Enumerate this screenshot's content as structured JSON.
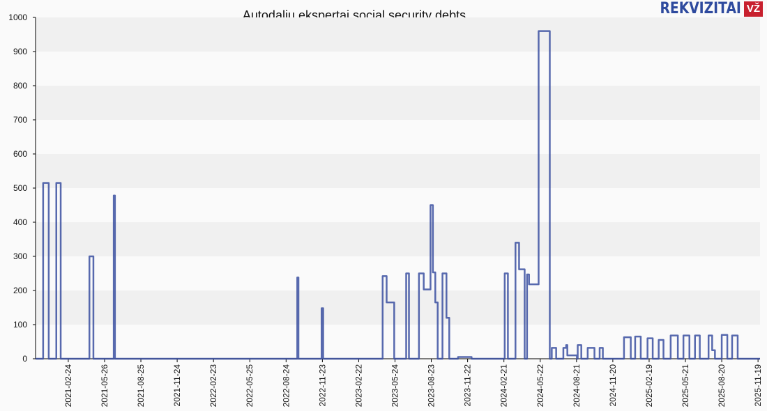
{
  "logo": {
    "text": "REKVIZITAI",
    "badge": "VŽ"
  },
  "chart_data": {
    "type": "line",
    "step": true,
    "title": "Autodalių ekspertai social security debts",
    "xlabel": "",
    "ylabel": "",
    "ylim": [
      0,
      1000
    ],
    "yticks": [
      0,
      100,
      200,
      300,
      400,
      500,
      600,
      700,
      800,
      900,
      1000
    ],
    "xlim": [
      "2020-12-04",
      "2025-11-24"
    ],
    "xticks": [
      "2021-02-24",
      "2021-05-26",
      "2021-08-25",
      "2021-11-24",
      "2022-02-23",
      "2022-05-25",
      "2022-08-24",
      "2022-11-23",
      "2023-02-22",
      "2023-05-24",
      "2023-08-23",
      "2023-11-22",
      "2024-02-21",
      "2024-05-22",
      "2024-08-21",
      "2024-11-20",
      "2025-02-19",
      "2025-05-21",
      "2025-08-20",
      "2025-11-19"
    ],
    "grid": "horizontal bands",
    "legend": "none",
    "colors": {
      "line": "#3a4fa0",
      "band_dark": "#f0f0f0",
      "band_light": "#fafafa"
    },
    "series": [
      {
        "name": "Social security debt",
        "points": [
          [
            "2020-12-04",
            0
          ],
          [
            "2020-12-23",
            515
          ],
          [
            "2021-01-06",
            0
          ],
          [
            "2021-01-25",
            515
          ],
          [
            "2021-02-05",
            0
          ],
          [
            "2021-04-18",
            300
          ],
          [
            "2021-04-28",
            0
          ],
          [
            "2021-06-18",
            478
          ],
          [
            "2021-06-21",
            0
          ],
          [
            "2022-09-21",
            238
          ],
          [
            "2022-09-24",
            0
          ],
          [
            "2022-11-21",
            148
          ],
          [
            "2022-11-25",
            0
          ],
          [
            "2023-04-23",
            242
          ],
          [
            "2023-05-03",
            165
          ],
          [
            "2023-05-22",
            0
          ],
          [
            "2023-06-21",
            250
          ],
          [
            "2023-06-28",
            0
          ],
          [
            "2023-07-23",
            250
          ],
          [
            "2023-08-04",
            203
          ],
          [
            "2023-08-21",
            450
          ],
          [
            "2023-08-27",
            253
          ],
          [
            "2023-09-02",
            165
          ],
          [
            "2023-09-08",
            0
          ],
          [
            "2023-09-20",
            250
          ],
          [
            "2023-09-30",
            120
          ],
          [
            "2023-10-07",
            0
          ],
          [
            "2023-10-29",
            5
          ],
          [
            "2023-12-02",
            0
          ],
          [
            "2024-02-23",
            250
          ],
          [
            "2024-03-02",
            0
          ],
          [
            "2024-03-21",
            340
          ],
          [
            "2024-03-30",
            262
          ],
          [
            "2024-04-13",
            0
          ],
          [
            "2024-04-19",
            247
          ],
          [
            "2024-04-24",
            218
          ],
          [
            "2024-05-18",
            960
          ],
          [
            "2024-06-15",
            0
          ],
          [
            "2024-06-20",
            32
          ],
          [
            "2024-07-01",
            0
          ],
          [
            "2024-07-19",
            32
          ],
          [
            "2024-07-26",
            40
          ],
          [
            "2024-07-29",
            10
          ],
          [
            "2024-08-22",
            0
          ],
          [
            "2024-08-24",
            40
          ],
          [
            "2024-09-02",
            0
          ],
          [
            "2024-09-18",
            32
          ],
          [
            "2024-10-05",
            0
          ],
          [
            "2024-10-18",
            32
          ],
          [
            "2024-10-26",
            0
          ],
          [
            "2024-12-18",
            63
          ],
          [
            "2025-01-04",
            0
          ],
          [
            "2025-01-15",
            65
          ],
          [
            "2025-01-29",
            0
          ],
          [
            "2025-02-15",
            60
          ],
          [
            "2025-02-28",
            0
          ],
          [
            "2025-03-15",
            55
          ],
          [
            "2025-03-27",
            0
          ],
          [
            "2025-04-14",
            68
          ],
          [
            "2025-05-02",
            0
          ],
          [
            "2025-05-16",
            68
          ],
          [
            "2025-05-31",
            0
          ],
          [
            "2025-06-14",
            68
          ],
          [
            "2025-06-26",
            0
          ],
          [
            "2025-07-18",
            68
          ],
          [
            "2025-07-27",
            25
          ],
          [
            "2025-08-03",
            0
          ],
          [
            "2025-08-20",
            70
          ],
          [
            "2025-09-03",
            0
          ],
          [
            "2025-09-15",
            68
          ],
          [
            "2025-09-29",
            0
          ],
          [
            "2025-11-24",
            0
          ]
        ]
      }
    ]
  }
}
